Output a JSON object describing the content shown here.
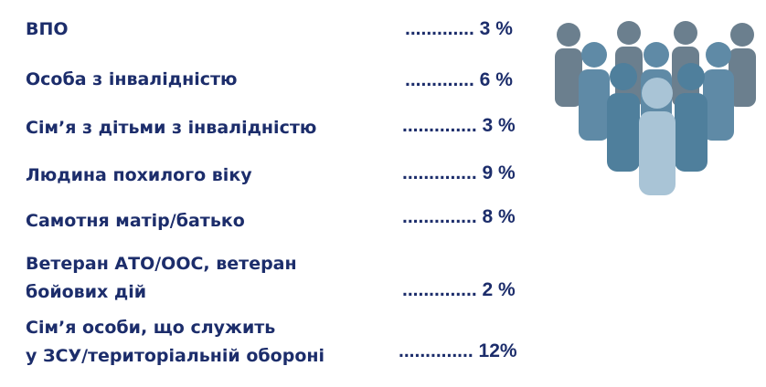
{
  "rows": [
    {
      "label": "ВПО",
      "value": "............. 3 %"
    },
    {
      "label": "Особа  з інвалідністю",
      "value": "............. 6 %"
    },
    {
      "label": "Сім’я з дітьми з інвалідністю",
      "value": ".............. 3 %"
    },
    {
      "label": "Людина похилого віку",
      "value": ".............. 9 %"
    },
    {
      "label": "Самотня матір/батько",
      "value": ".............. 8 %"
    },
    {
      "label_line1": "Ветеран АТО/ООС, ветеран",
      "label_line2": "бойових дій",
      "value": ".............. 2 %"
    },
    {
      "label_line1": "Сім’я особи, що служить",
      "label_line2": " у ЗСУ/територіальній обороні",
      "value": ".............. 12%"
    }
  ],
  "icon": "people-group-icon",
  "colors": {
    "text": "#1c2d6b",
    "back": "#6b7f8e",
    "mid": "#5f8aa6",
    "front": "#a9c4d6"
  }
}
